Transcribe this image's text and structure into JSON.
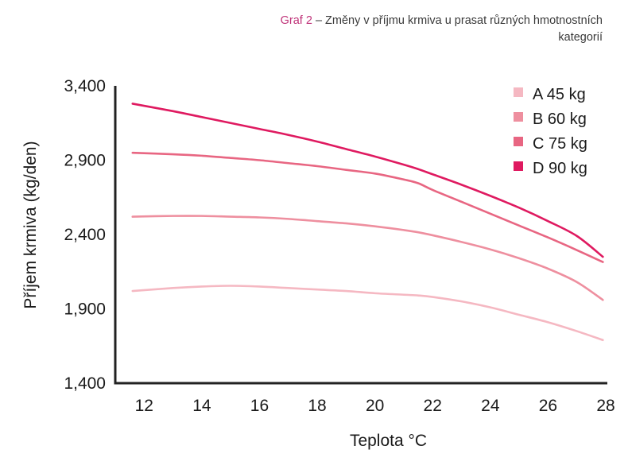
{
  "caption": {
    "tag": "Graf 2",
    "text": " – Změny v příjmu krmiva u prasat různých hmotnostních kategorií"
  },
  "chart_data": {
    "type": "line",
    "title": "Graf 2 – Změny v příjmu krmiva u prasat různých hmotnostních kategorií",
    "xlabel": "Teplota °C",
    "ylabel": "Příjem krmiva (kg/den)",
    "xlim": [
      11,
      28
    ],
    "ylim": [
      1400,
      3400
    ],
    "xticks": [
      12,
      14,
      16,
      18,
      20,
      22,
      24,
      26,
      28
    ],
    "xtick_labels": [
      "12",
      "14",
      "16",
      "18",
      "20",
      "22",
      "24",
      "26",
      "28"
    ],
    "yticks": [
      1400,
      1900,
      2400,
      2900,
      3400
    ],
    "ytick_labels": [
      "1,400",
      "1,900",
      "2,400",
      "2,900",
      "3,400"
    ],
    "grid": false,
    "legend_position": "top-right",
    "x": [
      11.6,
      13,
      14,
      15,
      16,
      17,
      18,
      19,
      20,
      21,
      21.5,
      22,
      23,
      24,
      25,
      26,
      27,
      27.9
    ],
    "series": [
      {
        "name": "A 45 kg",
        "color": "#f5b8c2",
        "values": [
          2020,
          2040,
          2050,
          2055,
          2050,
          2040,
          2030,
          2020,
          2005,
          1995,
          1990,
          1980,
          1950,
          1910,
          1860,
          1810,
          1750,
          1690
        ]
      },
      {
        "name": "B 60 kg",
        "color": "#ee8f9f",
        "values": [
          2520,
          2525,
          2525,
          2520,
          2515,
          2505,
          2490,
          2475,
          2455,
          2430,
          2415,
          2395,
          2350,
          2300,
          2240,
          2170,
          2080,
          1960
        ]
      },
      {
        "name": "C 75 kg",
        "color": "#e86682",
        "values": [
          2950,
          2940,
          2930,
          2915,
          2900,
          2880,
          2860,
          2835,
          2810,
          2770,
          2745,
          2700,
          2620,
          2540,
          2460,
          2380,
          2295,
          2215
        ]
      },
      {
        "name": "D 90 kg",
        "color": "#df1a60",
        "values": [
          3280,
          3230,
          3190,
          3150,
          3110,
          3070,
          3025,
          2975,
          2925,
          2870,
          2840,
          2805,
          2735,
          2660,
          2580,
          2490,
          2390,
          2250
        ]
      }
    ]
  }
}
